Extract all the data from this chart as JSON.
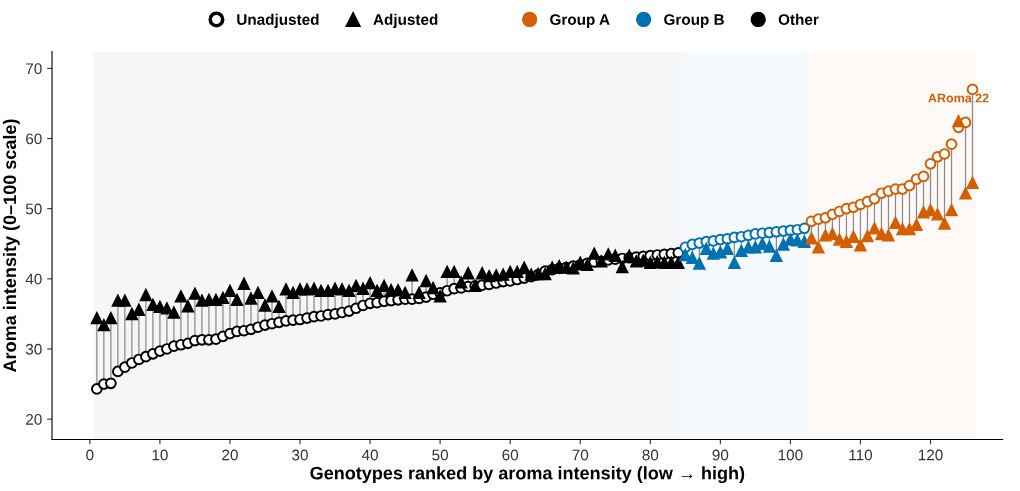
{
  "chart_data": {
    "type": "scatter",
    "xlabel": "Genotypes ranked by aroma intensity (low → high)",
    "ylabel": "Aroma intensity (0–100 scale)",
    "x": [
      1,
      2,
      3,
      4,
      5,
      6,
      7,
      8,
      9,
      10,
      11,
      12,
      13,
      14,
      15,
      16,
      17,
      18,
      19,
      20,
      21,
      22,
      23,
      24,
      25,
      26,
      27,
      28,
      29,
      30,
      31,
      32,
      33,
      34,
      35,
      36,
      37,
      38,
      39,
      40,
      41,
      42,
      43,
      44,
      45,
      46,
      47,
      48,
      49,
      50,
      51,
      52,
      53,
      54,
      55,
      56,
      57,
      58,
      59,
      60,
      61,
      62,
      63,
      64,
      65,
      66,
      67,
      68,
      69,
      70,
      71,
      72,
      73,
      74,
      75,
      76,
      77,
      78,
      79,
      80,
      81,
      82,
      83,
      84,
      85,
      86,
      87,
      88,
      89,
      90,
      91,
      92,
      93,
      94,
      95,
      96,
      97,
      98,
      99,
      100,
      101,
      102,
      103,
      104,
      105,
      106,
      107,
      108,
      109,
      110,
      111,
      112,
      113,
      114,
      115,
      116,
      117,
      118,
      119,
      120,
      121,
      122,
      123,
      124,
      125,
      126
    ],
    "series": [
      {
        "name": "Unadjusted",
        "marker": "circle",
        "colors": [
          "#000000",
          "#000000",
          "#000000",
          "#000000",
          "#000000",
          "#000000",
          "#000000",
          "#000000",
          "#000000",
          "#000000",
          "#000000",
          "#000000",
          "#000000",
          "#000000",
          "#000000",
          "#000000",
          "#000000",
          "#000000",
          "#000000",
          "#000000",
          "#000000",
          "#000000",
          "#000000",
          "#000000",
          "#000000",
          "#000000",
          "#000000",
          "#000000",
          "#000000",
          "#000000",
          "#000000",
          "#000000",
          "#000000",
          "#000000",
          "#000000",
          "#000000",
          "#000000",
          "#000000",
          "#000000",
          "#000000",
          "#000000",
          "#000000",
          "#000000",
          "#000000",
          "#000000",
          "#000000",
          "#000000",
          "#000000",
          "#000000",
          "#000000",
          "#000000",
          "#000000",
          "#000000",
          "#000000",
          "#000000",
          "#000000",
          "#000000",
          "#000000",
          "#000000",
          "#000000",
          "#000000",
          "#000000",
          "#000000",
          "#000000",
          "#000000",
          "#000000",
          "#000000",
          "#000000",
          "#000000",
          "#000000",
          "#000000",
          "#000000",
          "#000000",
          "#000000",
          "#000000",
          "#000000",
          "#000000",
          "#000000",
          "#000000",
          "#000000",
          "#000000",
          "#000000",
          "#000000",
          "#000000",
          "#0072b2",
          "#0072b2",
          "#0072b2",
          "#0072b2",
          "#0072b2",
          "#0072b2",
          "#0072b2",
          "#0072b2",
          "#0072b2",
          "#0072b2",
          "#0072b2",
          "#0072b2",
          "#0072b2",
          "#0072b2",
          "#0072b2",
          "#0072b2",
          "#0072b2",
          "#0072b2",
          "#d55e00",
          "#d55e00",
          "#d55e00",
          "#d55e00",
          "#d55e00",
          "#d55e00",
          "#d55e00",
          "#d55e00",
          "#d55e00",
          "#d55e00",
          "#d55e00",
          "#d55e00",
          "#d55e00",
          "#d55e00",
          "#d55e00",
          "#d55e00",
          "#d55e00",
          "#d55e00",
          "#d55e00",
          "#d55e00",
          "#d55e00",
          "#d55e00",
          "#d55e00",
          "#d55e00"
        ],
        "values": [
          24.3,
          25.0,
          25.1,
          26.8,
          27.4,
          28.0,
          28.5,
          28.9,
          29.3,
          29.7,
          30.0,
          30.4,
          30.6,
          30.8,
          31.2,
          31.3,
          31.3,
          31.4,
          31.8,
          32.2,
          32.5,
          32.6,
          32.8,
          33.1,
          33.4,
          33.6,
          33.8,
          34.0,
          34.1,
          34.2,
          34.4,
          34.6,
          34.7,
          34.9,
          35.0,
          35.2,
          35.4,
          35.8,
          36.2,
          36.5,
          36.6,
          36.8,
          36.9,
          37.0,
          37.1,
          37.1,
          37.2,
          37.4,
          37.8,
          38.0,
          38.3,
          38.6,
          38.7,
          38.9,
          39.0,
          39.1,
          39.2,
          39.4,
          39.6,
          39.7,
          39.9,
          40.1,
          40.3,
          40.6,
          41.1,
          41.3,
          41.5,
          41.6,
          41.8,
          42.0,
          42.2,
          42.4,
          42.5,
          42.7,
          42.8,
          42.9,
          43.0,
          43.1,
          43.2,
          43.3,
          43.4,
          43.5,
          43.6,
          43.7,
          44.5,
          44.9,
          45.1,
          45.3,
          45.4,
          45.6,
          45.7,
          45.9,
          46.0,
          46.2,
          46.4,
          46.5,
          46.6,
          46.7,
          46.8,
          46.9,
          47.0,
          47.2,
          48.2,
          48.5,
          48.7,
          49.2,
          49.6,
          50.0,
          50.2,
          50.6,
          51.0,
          51.4,
          52.2,
          52.5,
          52.8,
          52.8,
          53.3,
          54.2,
          54.6,
          56.4,
          57.4,
          57.8,
          59.2,
          61.6,
          62.3,
          67.0
        ]
      },
      {
        "name": "Adjusted",
        "marker": "triangle",
        "colors": [
          "#000000",
          "#000000",
          "#000000",
          "#000000",
          "#000000",
          "#000000",
          "#000000",
          "#000000",
          "#000000",
          "#000000",
          "#000000",
          "#000000",
          "#000000",
          "#000000",
          "#000000",
          "#000000",
          "#000000",
          "#000000",
          "#000000",
          "#000000",
          "#000000",
          "#000000",
          "#000000",
          "#000000",
          "#000000",
          "#000000",
          "#000000",
          "#000000",
          "#000000",
          "#000000",
          "#000000",
          "#000000",
          "#000000",
          "#000000",
          "#000000",
          "#000000",
          "#000000",
          "#000000",
          "#000000",
          "#000000",
          "#000000",
          "#000000",
          "#000000",
          "#000000",
          "#000000",
          "#000000",
          "#000000",
          "#000000",
          "#000000",
          "#000000",
          "#000000",
          "#000000",
          "#000000",
          "#000000",
          "#000000",
          "#000000",
          "#000000",
          "#000000",
          "#000000",
          "#000000",
          "#000000",
          "#000000",
          "#000000",
          "#000000",
          "#000000",
          "#000000",
          "#000000",
          "#000000",
          "#000000",
          "#000000",
          "#000000",
          "#000000",
          "#000000",
          "#000000",
          "#000000",
          "#000000",
          "#000000",
          "#000000",
          "#000000",
          "#000000",
          "#000000",
          "#000000",
          "#000000",
          "#000000",
          "#0072b2",
          "#0072b2",
          "#0072b2",
          "#0072b2",
          "#0072b2",
          "#0072b2",
          "#0072b2",
          "#0072b2",
          "#0072b2",
          "#0072b2",
          "#0072b2",
          "#0072b2",
          "#0072b2",
          "#0072b2",
          "#0072b2",
          "#0072b2",
          "#0072b2",
          "#0072b2",
          "#d55e00",
          "#d55e00",
          "#d55e00",
          "#d55e00",
          "#d55e00",
          "#d55e00",
          "#d55e00",
          "#d55e00",
          "#d55e00",
          "#d55e00",
          "#d55e00",
          "#d55e00",
          "#d55e00",
          "#d55e00",
          "#d55e00",
          "#d55e00",
          "#d55e00",
          "#d55e00",
          "#d55e00",
          "#d55e00",
          "#d55e00",
          "#d55e00",
          "#d55e00",
          "#d55e00"
        ],
        "values": [
          34.4,
          33.4,
          34.4,
          36.9,
          36.9,
          35.0,
          35.6,
          37.7,
          36.3,
          36.0,
          35.8,
          35.2,
          37.5,
          36.1,
          37.9,
          36.9,
          37.0,
          37.0,
          37.3,
          38.3,
          37.0,
          39.3,
          37.2,
          38.0,
          36.2,
          37.5,
          36.0,
          38.5,
          38.0,
          38.5,
          38.5,
          38.6,
          38.3,
          38.3,
          38.6,
          38.5,
          38.3,
          39.0,
          38.6,
          39.4,
          38.3,
          39.0,
          38.4,
          38.4,
          38.0,
          40.5,
          38.0,
          39.7,
          38.7,
          37.5,
          41.0,
          41.0,
          39.5,
          40.8,
          39.0,
          40.8,
          40.4,
          40.5,
          40.6,
          41.0,
          41.0,
          41.6,
          40.6,
          40.7,
          40.7,
          41.6,
          41.8,
          41.6,
          41.5,
          42.3,
          42.0,
          43.6,
          42.5,
          43.5,
          43.3,
          41.7,
          43.3,
          42.5,
          42.6,
          42.3,
          42.4,
          42.3,
          42.3,
          42.3,
          43.4,
          43.0,
          42.2,
          44.3,
          43.6,
          43.8,
          44.3,
          42.3,
          44.0,
          44.5,
          44.5,
          45.0,
          44.6,
          43.3,
          44.9,
          45.6,
          45.5,
          45.3,
          45.8,
          44.5,
          46.2,
          46.4,
          45.6,
          45.3,
          46.0,
          44.8,
          46.1,
          47.2,
          46.4,
          46.2,
          48.0,
          47.1,
          47.1,
          47.7,
          49.5,
          49.8,
          49.2,
          47.9,
          49.8,
          62.5,
          52.2,
          53.7
        ]
      }
    ],
    "bands": [
      {
        "axis": "x",
        "from": 0.5,
        "to": 84.5,
        "label": "Other",
        "color": "#000000"
      },
      {
        "axis": "x",
        "from": 84.5,
        "to": 102.5,
        "label": "Group B",
        "color": "#0072b2"
      },
      {
        "axis": "x",
        "from": 102.5,
        "to": 126.5,
        "label": "Group A",
        "color": "#d55e00"
      }
    ],
    "annotations": [
      {
        "text": "ARoma 22",
        "x": 124,
        "y": 61.6
      }
    ],
    "xlim": [
      -5.4,
      130.3
    ],
    "ylim": [
      17.1,
      72.4
    ],
    "xticks": [
      0,
      10,
      20,
      30,
      40,
      50,
      60,
      70,
      80,
      90,
      100,
      110,
      120
    ],
    "yticks": [
      20,
      30,
      40,
      50,
      60,
      70
    ],
    "grid": false,
    "legend": "top"
  }
}
